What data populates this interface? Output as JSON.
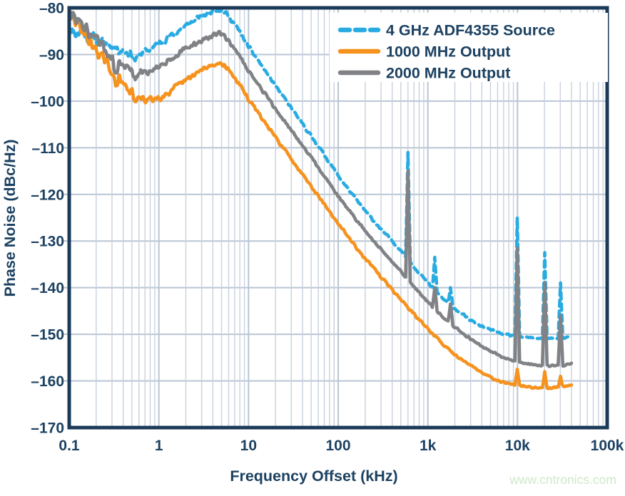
{
  "watermark": {
    "text": "www.cntronics.com",
    "color": "#cee9c8"
  },
  "colors": {
    "navy_text": "#1c4161",
    "plot_border": "#1b3a58",
    "grid_major": "#b9c5d4",
    "grid_minor": "#c8d1de",
    "background": "#ffffff"
  },
  "chart_data": {
    "type": "line",
    "title": "",
    "xlabel": "Frequency Offset (kHz)",
    "ylabel": "Phase Noise (dBc/Hz)",
    "x_scale": "log",
    "xlim": [
      0.1,
      100000
    ],
    "ylim": [
      -170,
      -80
    ],
    "grid": true,
    "legend_position": "top-right",
    "x_ticks": [
      {
        "value": 0.1,
        "label": "0.1"
      },
      {
        "value": 1,
        "label": "1"
      },
      {
        "value": 10,
        "label": "10"
      },
      {
        "value": 100,
        "label": "100"
      },
      {
        "value": 1000,
        "label": "1k"
      },
      {
        "value": 10000,
        "label": "10k"
      },
      {
        "value": 100000,
        "label": "100k"
      }
    ],
    "y_ticks": [
      {
        "value": -80,
        "label": "–80"
      },
      {
        "value": -90,
        "label": "–90"
      },
      {
        "value": -100,
        "label": "–100"
      },
      {
        "value": -110,
        "label": "–110"
      },
      {
        "value": -120,
        "label": "–120"
      },
      {
        "value": -130,
        "label": "–130"
      },
      {
        "value": -140,
        "label": "–140"
      },
      {
        "value": -150,
        "label": "–150"
      },
      {
        "value": -160,
        "label": "–160"
      },
      {
        "value": -170,
        "label": "–170"
      }
    ],
    "noise_profile": [
      [
        0.1,
        2.0
      ],
      [
        0.2,
        1.6
      ],
      [
        0.3,
        1.4
      ],
      [
        1,
        1.0
      ],
      [
        3,
        0.8
      ],
      [
        6,
        0.6
      ],
      [
        20,
        0.45
      ],
      [
        100,
        0.4
      ],
      [
        500,
        0.35
      ],
      [
        3000,
        0.3
      ],
      [
        40000,
        0.28
      ]
    ],
    "series": [
      {
        "name": "4 GHz ADF4355 Source",
        "color": "#29abe2",
        "style": "dashed",
        "seed": 11,
        "z": 0,
        "points": [
          [
            0.1,
            -84.0
          ],
          [
            0.12,
            -85.5
          ],
          [
            0.14,
            -84.8
          ],
          [
            0.16,
            -86.5
          ],
          [
            0.18,
            -86.0
          ],
          [
            0.2,
            -87.2
          ],
          [
            0.25,
            -87.6
          ],
          [
            0.3,
            -88.2
          ],
          [
            0.35,
            -88.8
          ],
          [
            0.4,
            -89.2
          ],
          [
            0.5,
            -89.8
          ],
          [
            0.55,
            -91.5
          ],
          [
            0.6,
            -89.8
          ],
          [
            0.7,
            -89.4
          ],
          [
            0.8,
            -88.9
          ],
          [
            1,
            -87.7
          ],
          [
            1.3,
            -86.3
          ],
          [
            1.6,
            -85.1
          ],
          [
            2,
            -83.9
          ],
          [
            2.5,
            -82.7
          ],
          [
            3,
            -81.9
          ],
          [
            3.5,
            -81.2
          ],
          [
            4,
            -80.7
          ],
          [
            4.5,
            -80.3
          ],
          [
            5,
            -80.5
          ],
          [
            5.5,
            -81.0
          ],
          [
            6,
            -81.8
          ],
          [
            7,
            -83.5
          ],
          [
            8,
            -85.2
          ],
          [
            10,
            -88.3
          ],
          [
            15,
            -93.2
          ],
          [
            20,
            -96.7
          ],
          [
            30,
            -101.5
          ],
          [
            50,
            -107.5
          ],
          [
            70,
            -111.5
          ],
          [
            100,
            -116
          ],
          [
            150,
            -120.5
          ],
          [
            200,
            -123.5
          ],
          [
            300,
            -127.5
          ],
          [
            400,
            -130
          ],
          [
            500,
            -132
          ],
          [
            700,
            -135.5
          ],
          [
            1000,
            -139
          ],
          [
            1500,
            -142.5
          ],
          [
            2000,
            -144.5
          ],
          [
            3000,
            -147
          ],
          [
            4000,
            -148.3
          ],
          [
            5000,
            -149
          ],
          [
            7000,
            -150
          ],
          [
            10000,
            -150.5
          ],
          [
            15000,
            -150.8
          ],
          [
            20000,
            -150.9
          ],
          [
            30000,
            -150.9
          ],
          [
            40000,
            -150.6
          ]
        ],
        "spurs": [
          [
            600,
            -111
          ],
          [
            1200,
            -133.5
          ],
          [
            1800,
            -140
          ],
          [
            10000,
            -125
          ],
          [
            20000,
            -132.5
          ],
          [
            30000,
            -139
          ]
        ]
      },
      {
        "name": "1000 MHz Output",
        "color": "#f6921e",
        "style": "solid",
        "seed": 29,
        "z": 1,
        "points": [
          [
            0.1,
            -81.5
          ],
          [
            0.12,
            -83.0
          ],
          [
            0.14,
            -84.5
          ],
          [
            0.16,
            -86.5
          ],
          [
            0.18,
            -88.0
          ],
          [
            0.2,
            -89.0
          ],
          [
            0.25,
            -91.5
          ],
          [
            0.3,
            -93.5
          ],
          [
            0.33,
            -97.0
          ],
          [
            0.36,
            -95.0
          ],
          [
            0.4,
            -96.3
          ],
          [
            0.45,
            -97.2
          ],
          [
            0.5,
            -98.2
          ],
          [
            0.55,
            -100.5
          ],
          [
            0.6,
            -99.3
          ],
          [
            0.7,
            -99.7
          ],
          [
            0.8,
            -99.7
          ],
          [
            1,
            -99.2
          ],
          [
            1.3,
            -98.1
          ],
          [
            1.6,
            -96.9
          ],
          [
            2,
            -95.6
          ],
          [
            2.5,
            -94.3
          ],
          [
            3,
            -93.4
          ],
          [
            3.5,
            -92.7
          ],
          [
            4,
            -92.2
          ],
          [
            4.7,
            -91.8
          ],
          [
            5.5,
            -92.5
          ],
          [
            6,
            -93.3
          ],
          [
            7,
            -95
          ],
          [
            8,
            -96.6
          ],
          [
            10,
            -99.6
          ],
          [
            15,
            -104.4
          ],
          [
            20,
            -107.8
          ],
          [
            30,
            -112.4
          ],
          [
            50,
            -118.1
          ],
          [
            70,
            -122.1
          ],
          [
            100,
            -126.3
          ],
          [
            150,
            -130.7
          ],
          [
            200,
            -133.7
          ],
          [
            300,
            -137.7
          ],
          [
            500,
            -142.5
          ],
          [
            700,
            -145.7
          ],
          [
            1000,
            -148.8
          ],
          [
            1500,
            -152.3
          ],
          [
            2000,
            -154.3
          ],
          [
            3000,
            -156.8
          ],
          [
            4000,
            -158.2
          ],
          [
            5000,
            -159.2
          ],
          [
            7000,
            -160.3
          ],
          [
            10000,
            -161
          ],
          [
            15000,
            -161.4
          ],
          [
            20000,
            -161.5
          ],
          [
            30000,
            -161.3
          ],
          [
            40000,
            -160.8
          ]
        ],
        "spurs": [
          [
            600,
            -146
          ],
          [
            1200,
            -150.5
          ],
          [
            10000,
            -157.5
          ],
          [
            20000,
            -158
          ],
          [
            30000,
            -159
          ]
        ]
      },
      {
        "name": "2000 MHz Output",
        "color": "#808285",
        "style": "solid",
        "seed": 47,
        "z": 2,
        "points": [
          [
            0.1,
            -81.0
          ],
          [
            0.12,
            -82.5
          ],
          [
            0.14,
            -83.5
          ],
          [
            0.16,
            -85.0
          ],
          [
            0.18,
            -86.0
          ],
          [
            0.2,
            -87.0
          ],
          [
            0.25,
            -89.0
          ],
          [
            0.3,
            -90.5
          ],
          [
            0.33,
            -94.5
          ],
          [
            0.36,
            -91.5
          ],
          [
            0.4,
            -92.5
          ],
          [
            0.45,
            -93.0
          ],
          [
            0.5,
            -93.5
          ],
          [
            0.55,
            -96.0
          ],
          [
            0.6,
            -93.9
          ],
          [
            0.7,
            -93.8
          ],
          [
            0.8,
            -93.4
          ],
          [
            1,
            -92.5
          ],
          [
            1.3,
            -91.1
          ],
          [
            1.6,
            -89.9
          ],
          [
            2,
            -88.8
          ],
          [
            2.5,
            -87.7
          ],
          [
            3,
            -87.0
          ],
          [
            3.5,
            -86.4
          ],
          [
            4,
            -85.9
          ],
          [
            4.7,
            -85.5
          ],
          [
            5.5,
            -86.2
          ],
          [
            6,
            -87.0
          ],
          [
            7,
            -88.7
          ],
          [
            8,
            -90.4
          ],
          [
            10,
            -93.5
          ],
          [
            15,
            -98.3
          ],
          [
            20,
            -101.7
          ],
          [
            30,
            -106.3
          ],
          [
            50,
            -112
          ],
          [
            70,
            -116
          ],
          [
            100,
            -120.4
          ],
          [
            150,
            -124.8
          ],
          [
            200,
            -127.8
          ],
          [
            300,
            -131.8
          ],
          [
            500,
            -136.5
          ],
          [
            700,
            -139.8
          ],
          [
            1000,
            -143
          ],
          [
            1500,
            -146.5
          ],
          [
            2000,
            -148.5
          ],
          [
            3000,
            -151
          ],
          [
            4000,
            -152.5
          ],
          [
            5000,
            -153.5
          ],
          [
            7000,
            -155
          ],
          [
            10000,
            -156
          ],
          [
            15000,
            -156.5
          ],
          [
            20000,
            -156.7
          ],
          [
            30000,
            -156.7
          ],
          [
            40000,
            -156.4
          ]
        ],
        "spurs": [
          [
            600,
            -115
          ],
          [
            1200,
            -140
          ],
          [
            1800,
            -143.5
          ],
          [
            10000,
            -131.5
          ],
          [
            20000,
            -139
          ],
          [
            30000,
            -146
          ]
        ]
      }
    ]
  }
}
